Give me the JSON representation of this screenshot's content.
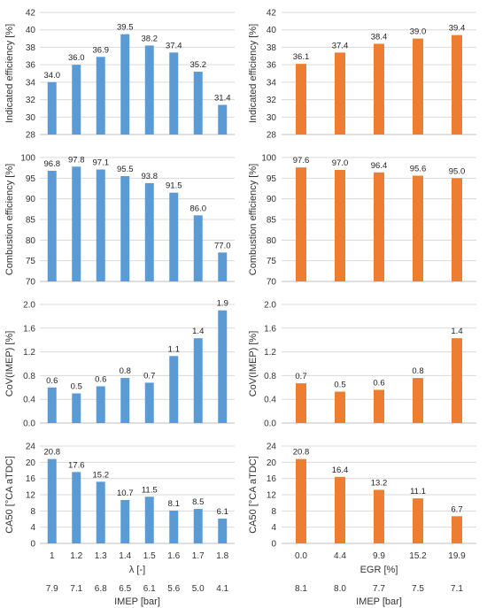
{
  "colors": {
    "left": "#5B9BD5",
    "right": "#ED7D31",
    "grid": "#d9d9d9",
    "text": "#222222",
    "axis_text": "#333333"
  },
  "chart_data": [
    {
      "id": "L1",
      "type": "bar",
      "column": "left",
      "ylabel": "Indicated efficiency [%]",
      "ylim": [
        28,
        42
      ],
      "yticks": [
        28,
        30,
        32,
        34,
        36,
        38,
        40,
        42
      ],
      "tick_digits": 0,
      "categories": [
        "1",
        "1.2",
        "1.3",
        "1.4",
        "1.5",
        "1.6",
        "1.7",
        "1.8"
      ],
      "values": [
        34.0,
        36.0,
        36.9,
        39.5,
        38.2,
        37.4,
        35.2,
        31.4
      ],
      "labels": [
        "34.0",
        "36.0",
        "36.9",
        "39.5",
        "38.2",
        "37.4",
        "35.2",
        "31.4"
      ]
    },
    {
      "id": "R1",
      "type": "bar",
      "column": "right",
      "ylabel": "Indicated efficiency [%]",
      "ylim": [
        28,
        42
      ],
      "yticks": [
        28,
        30,
        32,
        34,
        36,
        38,
        40,
        42
      ],
      "tick_digits": 0,
      "categories": [
        "0.0",
        "4.4",
        "9.9",
        "15.2",
        "19.9"
      ],
      "values": [
        36.1,
        37.4,
        38.4,
        39.0,
        39.4
      ],
      "labels": [
        "36.1",
        "37.4",
        "38.4",
        "39.0",
        "39.4"
      ]
    },
    {
      "id": "L2",
      "type": "bar",
      "column": "left",
      "ylabel": "Combustion efficiency [%]",
      "ylim": [
        70,
        100
      ],
      "yticks": [
        70,
        75,
        80,
        85,
        90,
        95,
        100
      ],
      "tick_digits": 0,
      "categories": [
        "1",
        "1.2",
        "1.3",
        "1.4",
        "1.5",
        "1.6",
        "1.7",
        "1.8"
      ],
      "values": [
        96.8,
        97.8,
        97.1,
        95.5,
        93.8,
        91.5,
        86.0,
        77.0
      ],
      "labels": [
        "96.8",
        "97.8",
        "97.1",
        "95.5",
        "93.8",
        "91.5",
        "86.0",
        "77.0"
      ]
    },
    {
      "id": "R2",
      "type": "bar",
      "column": "right",
      "ylabel": "Combustion efficiency [%]",
      "ylim": [
        70,
        100
      ],
      "yticks": [
        70,
        75,
        80,
        85,
        90,
        95,
        100
      ],
      "tick_digits": 0,
      "categories": [
        "0.0",
        "4.4",
        "9.9",
        "15.2",
        "19.9"
      ],
      "values": [
        97.6,
        97.0,
        96.4,
        95.6,
        95.0
      ],
      "labels": [
        "97.6",
        "97.0",
        "96.4",
        "95.6",
        "95.0"
      ]
    },
    {
      "id": "L3",
      "type": "bar",
      "column": "left",
      "ylabel": "CoV(IMEP) [%]",
      "ylim": [
        0,
        2
      ],
      "yticks": [
        0,
        0.4,
        0.8,
        1.2,
        1.6,
        2
      ],
      "tick_digits": 1,
      "categories": [
        "1",
        "1.2",
        "1.3",
        "1.4",
        "1.5",
        "1.6",
        "1.7",
        "1.8"
      ],
      "values": [
        0.6,
        0.5,
        0.62,
        0.76,
        0.68,
        1.13,
        1.43,
        1.9
      ],
      "labels": [
        "0.6",
        "0.5",
        "0.6",
        "0.8",
        "0.7",
        "1.1",
        "1.4",
        "1.9"
      ]
    },
    {
      "id": "R3",
      "type": "bar",
      "column": "right",
      "ylabel": "CoV(IMEP) [%]",
      "ylim": [
        0,
        2
      ],
      "yticks": [
        0,
        0.4,
        0.8,
        1.2,
        1.6,
        2
      ],
      "tick_digits": 1,
      "categories": [
        "0.0",
        "4.4",
        "9.9",
        "15.2",
        "19.9"
      ],
      "values": [
        0.67,
        0.53,
        0.56,
        0.76,
        1.43
      ],
      "labels": [
        "0.7",
        "0.5",
        "0.6",
        "0.8",
        "1.4"
      ]
    },
    {
      "id": "L4",
      "type": "bar",
      "column": "left",
      "ylabel": "CA50 [°CA aTDC]",
      "ylim": [
        0,
        24
      ],
      "yticks": [
        0,
        4,
        8,
        12,
        16,
        20,
        24
      ],
      "tick_digits": 0,
      "categories": [
        "1",
        "1.2",
        "1.3",
        "1.4",
        "1.5",
        "1.6",
        "1.7",
        "1.8"
      ],
      "values": [
        20.8,
        17.6,
        15.2,
        10.7,
        11.5,
        8.1,
        8.5,
        6.1
      ],
      "labels": [
        "20.8",
        "17.6",
        "15.2",
        "10.7",
        "11.5",
        "8.1",
        "8.5",
        "6.1"
      ],
      "xlabel": "λ [-]",
      "xrow2": [
        "7.9",
        "7.1",
        "6.8",
        "6.5",
        "6.1",
        "5.6",
        "5.0",
        "4.1"
      ],
      "xlabel2": "IMEP [bar]"
    },
    {
      "id": "R4",
      "type": "bar",
      "column": "right",
      "ylabel": "CA50 [°CA aTDC]",
      "ylim": [
        0,
        24
      ],
      "yticks": [
        0,
        4,
        8,
        12,
        16,
        20,
        24
      ],
      "tick_digits": 0,
      "categories": [
        "0.0",
        "4.4",
        "9.9",
        "15.2",
        "19.9"
      ],
      "values": [
        20.8,
        16.4,
        13.2,
        11.1,
        6.7
      ],
      "labels": [
        "20.8",
        "16.4",
        "13.2",
        "11.1",
        "6.7"
      ],
      "xlabel": "EGR [%]",
      "xrow2": [
        "8.1",
        "8.0",
        "7.7",
        "7.5",
        "7.1"
      ],
      "xlabel2": "IMEP [bar]"
    }
  ]
}
